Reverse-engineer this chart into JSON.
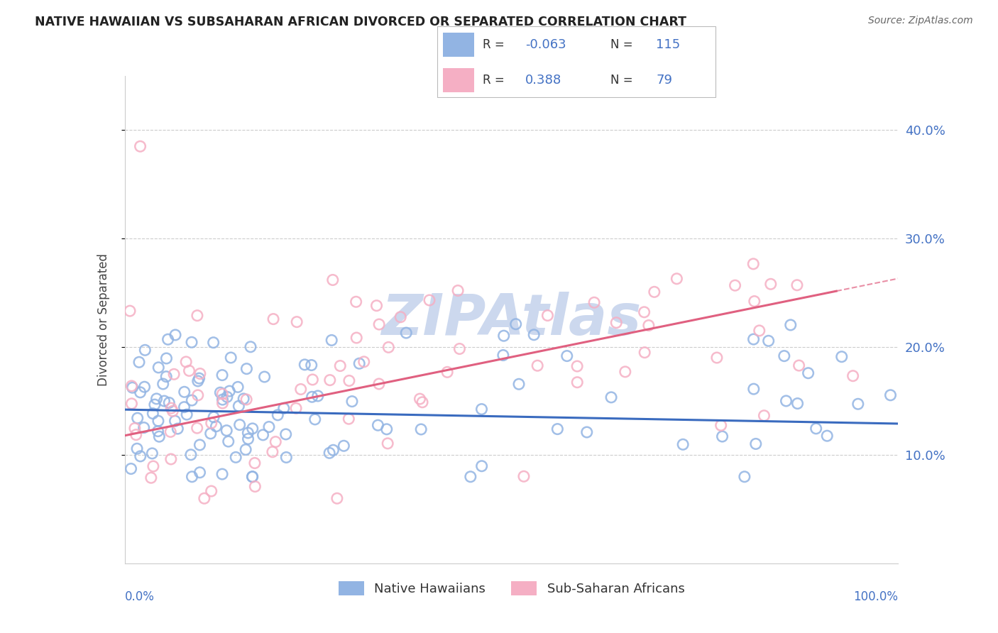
{
  "title": "NATIVE HAWAIIAN VS SUBSAHARAN AFRICAN DIVORCED OR SEPARATED CORRELATION CHART",
  "source_text": "Source: ZipAtlas.com",
  "ylabel": "Divorced or Separated",
  "ytick_values": [
    0.1,
    0.2,
    0.3,
    0.4
  ],
  "ytick_labels": [
    "10.0%",
    "20.0%",
    "30.0%",
    "40.0%"
  ],
  "xlim": [
    0.0,
    1.0
  ],
  "ylim": [
    0.0,
    0.45
  ],
  "blue_color": "#92b4e3",
  "pink_color": "#f5afc4",
  "blue_line_color": "#3a6bbf",
  "pink_line_color": "#e06080",
  "blue_tick_color": "#4472c4",
  "watermark": "ZIPAtlas",
  "watermark_color": "#ccd8ee",
  "footer_blue_label": "Native Hawaiians",
  "footer_pink_label": "Sub-Saharan Africans",
  "blue_R": -0.063,
  "blue_N": 115,
  "pink_R": 0.388,
  "pink_N": 79,
  "blue_intercept": 0.142,
  "blue_slope": -0.013,
  "pink_intercept": 0.118,
  "pink_slope": 0.145
}
